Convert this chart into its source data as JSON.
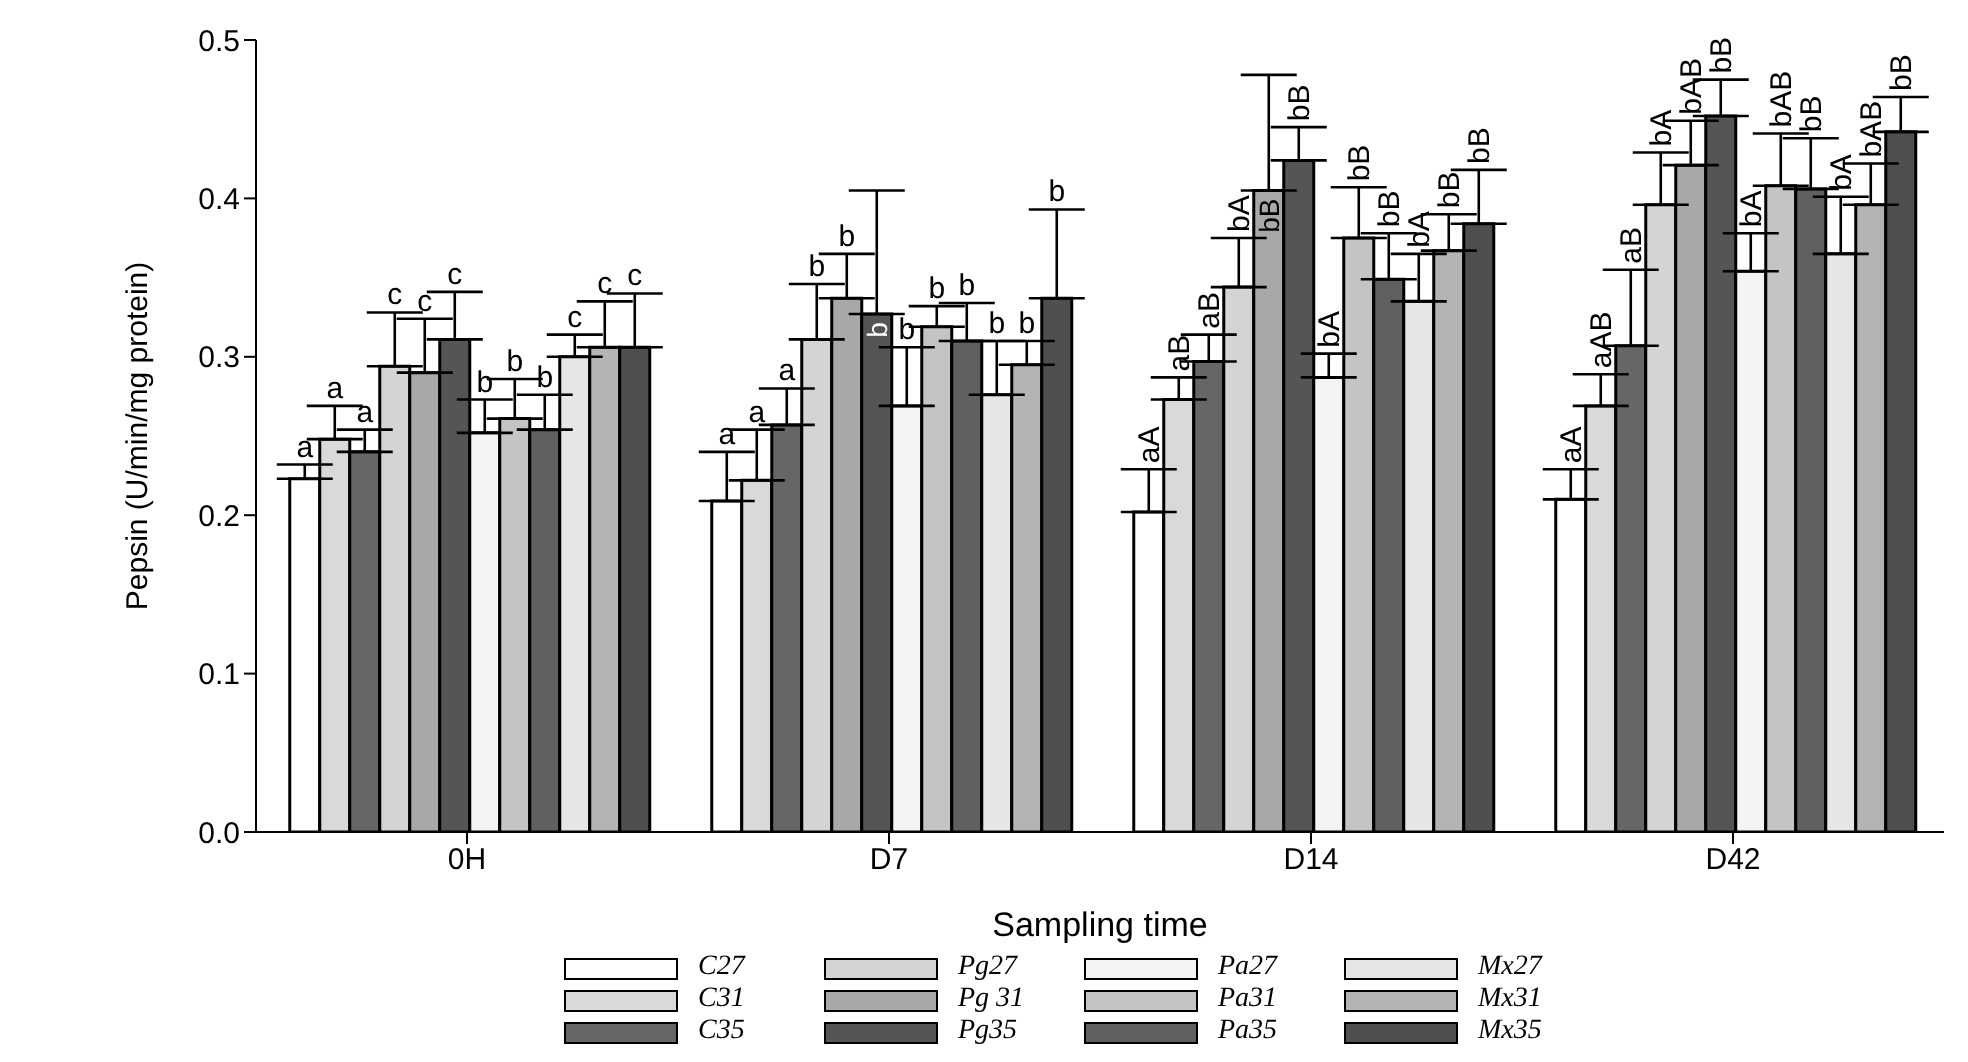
{
  "chart_data": {
    "type": "bar",
    "xlabel": "Sampling time",
    "ylabel": "Pepsin (U/min/mg protein)",
    "categories": [
      "0H",
      "D7",
      "D14",
      "D42"
    ],
    "ylim": [
      0,
      0.5
    ],
    "yticks": [
      {
        "value": 0,
        "label": "0.0"
      },
      {
        "value": 0.1,
        "label": "0.1"
      },
      {
        "value": 0.2,
        "label": "0.2"
      },
      {
        "value": 0.3,
        "label": "0.3"
      },
      {
        "value": 0.4,
        "label": "0.4"
      },
      {
        "value": 0.5,
        "label": "0.5"
      }
    ],
    "legend": "bottom",
    "series": [
      {
        "name": "C27",
        "color": "#ffffff",
        "values": [
          0.223,
          0.209,
          0.202,
          0.21
        ],
        "errors": [
          0.009,
          0.031,
          0.027,
          0.019
        ],
        "value_labels": [
          "a",
          "a",
          "aA",
          "aA"
        ]
      },
      {
        "name": "C31",
        "color": "#d9d9d9",
        "values": [
          0.248,
          0.222,
          0.273,
          0.269
        ],
        "errors": [
          0.021,
          0.032,
          0.014,
          0.02
        ],
        "value_labels": [
          "a",
          "a",
          "aB",
          "aAB"
        ]
      },
      {
        "name": "C35",
        "color": "#666666",
        "values": [
          0.24,
          0.257,
          0.297,
          0.307
        ],
        "errors": [
          0.014,
          0.023,
          0.017,
          0.048
        ],
        "value_labels": [
          "a",
          "a",
          "aB",
          "aB"
        ]
      },
      {
        "name": "Pg27",
        "color": "#d4d4d4",
        "values": [
          0.294,
          0.311,
          0.344,
          0.396
        ],
        "errors": [
          0.034,
          0.035,
          0.031,
          0.033
        ],
        "value_labels": [
          "c",
          "b",
          "bA",
          "bA"
        ]
      },
      {
        "name": "Pg 31",
        "color": "#a8a8a8",
        "values": [
          0.29,
          0.337,
          0.405,
          0.421
        ],
        "errors": [
          0.034,
          0.028,
          0.073,
          0.028
        ],
        "value_labels": [
          "c",
          "b",
          "bB",
          "bAB"
        ]
      },
      {
        "name": "Pg35",
        "color": "#555555",
        "values": [
          0.311,
          0.327,
          0.424,
          0.452
        ],
        "errors": [
          0.03,
          0.078,
          0.021,
          0.023
        ],
        "value_labels": [
          "c",
          "b",
          "bB",
          "bB"
        ]
      },
      {
        "name": "Pa27",
        "color": "#f4f4f4",
        "values": [
          0.252,
          0.269,
          0.287,
          0.354
        ],
        "errors": [
          0.021,
          0.037,
          0.015,
          0.024
        ],
        "value_labels": [
          "b",
          "b",
          "bA",
          "bA"
        ]
      },
      {
        "name": "Pa31",
        "color": "#c4c4c4",
        "values": [
          0.261,
          0.319,
          0.375,
          0.408
        ],
        "errors": [
          0.025,
          0.013,
          0.032,
          0.033
        ],
        "value_labels": [
          "b",
          "b",
          "bB",
          "bAB"
        ]
      },
      {
        "name": "Pa35",
        "color": "#606060",
        "values": [
          0.254,
          0.31,
          0.349,
          0.406
        ],
        "errors": [
          0.022,
          0.024,
          0.029,
          0.032
        ],
        "value_labels": [
          "b",
          "b",
          "bB",
          "bB"
        ]
      },
      {
        "name": "Mx27",
        "color": "#e6e6e6",
        "values": [
          0.3,
          0.276,
          0.335,
          0.365
        ],
        "errors": [
          0.014,
          0.034,
          0.03,
          0.036
        ],
        "value_labels": [
          "c",
          "b",
          "bA",
          "bA"
        ]
      },
      {
        "name": "Mx31",
        "color": "#b4b4b4",
        "values": [
          0.306,
          0.295,
          0.367,
          0.396
        ],
        "errors": [
          0.029,
          0.015,
          0.023,
          0.026
        ],
        "value_labels": [
          "c",
          "b",
          "bB",
          "bAB"
        ]
      },
      {
        "name": "Mx35",
        "color": "#4f4f4f",
        "values": [
          0.306,
          0.337,
          0.384,
          0.442
        ],
        "errors": [
          0.034,
          0.056,
          0.034,
          0.022
        ],
        "value_labels": [
          "c",
          "b",
          "bB",
          "bB"
        ]
      }
    ]
  }
}
